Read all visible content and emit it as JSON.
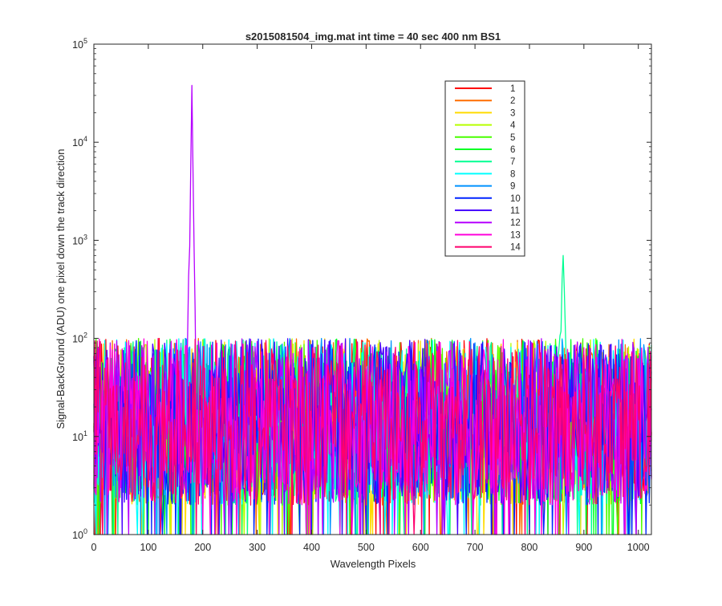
{
  "chart_data": {
    "type": "line",
    "title": "s2015081504_img.mat int time = 40 sec  400 nm BS1",
    "xlabel": "Wavelength Pixels",
    "ylabel": "Signal-BackGround (ADU) one pixel down the track direction",
    "xlim": [
      0,
      1024
    ],
    "ylim": [
      1,
      100000
    ],
    "yscale": "log",
    "x_ticks": [
      0,
      100,
      200,
      300,
      400,
      500,
      600,
      700,
      800,
      900,
      1000
    ],
    "y_ticks": [
      {
        "value": 1,
        "base": "10",
        "exp": "0"
      },
      {
        "value": 10,
        "base": "10",
        "exp": "1"
      },
      {
        "value": 100,
        "base": "10",
        "exp": "2"
      },
      {
        "value": 1000,
        "base": "10",
        "exp": "3"
      },
      {
        "value": 10000,
        "base": "10",
        "exp": "4"
      },
      {
        "value": 100000,
        "base": "10",
        "exp": "5"
      }
    ],
    "grid": false,
    "legend_position": "top-right",
    "noise_range": [
      1,
      100
    ],
    "series": [
      {
        "name": "1",
        "color": "#ff0000"
      },
      {
        "name": "2",
        "color": "#ff6d00"
      },
      {
        "name": "3",
        "color": "#ffdb00"
      },
      {
        "name": "4",
        "color": "#b6ff00"
      },
      {
        "name": "5",
        "color": "#49ff00"
      },
      {
        "name": "6",
        "color": "#00ff24"
      },
      {
        "name": "7",
        "color": "#00ff92",
        "peak": {
          "x": 862,
          "y": 700
        }
      },
      {
        "name": "8",
        "color": "#00ffff"
      },
      {
        "name": "9",
        "color": "#0092ff"
      },
      {
        "name": "10",
        "color": "#0024ff"
      },
      {
        "name": "11",
        "color": "#4900ff"
      },
      {
        "name": "12",
        "color": "#b600ff",
        "peak": {
          "x": 180,
          "y": 38000
        }
      },
      {
        "name": "13",
        "color": "#ff00db"
      },
      {
        "name": "14",
        "color": "#ff006d"
      }
    ]
  }
}
